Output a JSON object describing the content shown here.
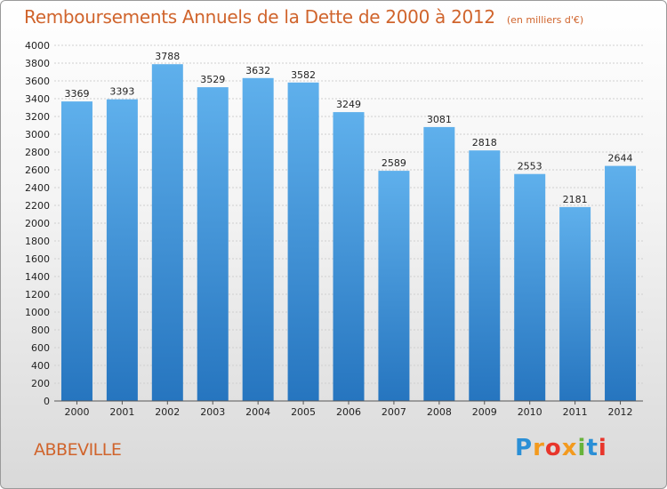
{
  "header": {
    "title": "Remboursements Annuels de la Dette de 2000 à 2012",
    "unit": "(en milliers d'€)"
  },
  "footer": {
    "city": "ABBEVILLE",
    "logo_letters": [
      "P",
      "r",
      "o",
      "x",
      "i",
      "t",
      "i"
    ],
    "logo_colors": [
      "#2a8fd6",
      "#f39a1e",
      "#e8352b",
      "#f39a1e",
      "#67b33a",
      "#2a8fd6",
      "#e8352b"
    ]
  },
  "colors": {
    "bar_top": "#5fb0ec",
    "bar_bottom": "#2675bf",
    "grid": "#cfcfcf",
    "axis_text": "#222222"
  },
  "chart_data": {
    "type": "bar",
    "categories": [
      "2000",
      "2001",
      "2002",
      "2003",
      "2004",
      "2005",
      "2006",
      "2007",
      "2008",
      "2009",
      "2010",
      "2011",
      "2012"
    ],
    "values": [
      3369,
      3393,
      3788,
      3529,
      3632,
      3582,
      3249,
      2589,
      3081,
      2818,
      2553,
      2181,
      2644
    ],
    "y_ticks": [
      "0",
      "200",
      "400",
      "600",
      "800",
      "1000",
      "1200",
      "1400",
      "1600",
      "1800",
      "2000",
      "2200",
      "2400",
      "2600",
      "2800",
      "3000",
      "3200",
      "3400",
      "3600",
      "3800",
      "4000"
    ],
    "ylim": [
      0,
      4000
    ],
    "grid": true,
    "data_labels": true
  }
}
